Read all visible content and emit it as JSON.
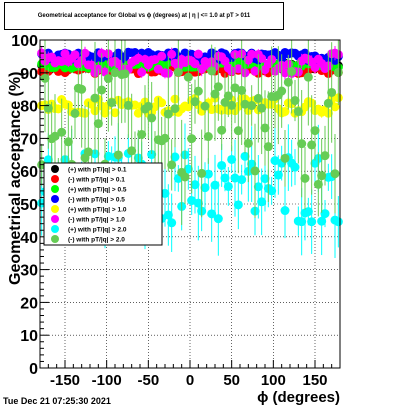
{
  "title": "Geometrical acceptance for Global vs ϕ (degrees) at | η | <= 1.0 at pT > 011",
  "timestamp": "Tue Dec 21 07:25:30 2021",
  "chart_data": {
    "type": "scatter",
    "xlabel": "ϕ (degrees)",
    "ylabel": "Geometrical acceptance (%)",
    "xlim": [
      -180,
      180
    ],
    "ylim": [
      0,
      100
    ],
    "x_ticks": [
      "-150",
      "-100",
      "-50",
      "0",
      "50",
      "100",
      "150"
    ],
    "y_ticks": [
      "0",
      "10",
      "20",
      "30",
      "40",
      "50",
      "60",
      "70",
      "80",
      "90",
      "100"
    ],
    "grid": true,
    "legend_position": "middle-left",
    "series": [
      {
        "name": "(+) with pT/|q| > 0.1",
        "color": "#000000",
        "mean": 92.0,
        "spread": 0.6,
        "err": 0.8
      },
      {
        "name": "(-) with pT/|q| > 0.1",
        "color": "#ff0000",
        "mean": 91.0,
        "spread": 0.8,
        "err": 0.8
      },
      {
        "name": "(+) with pT/|q| > 0.5",
        "color": "#00ff00",
        "mean": 92.5,
        "spread": 0.7,
        "err": 0.8
      },
      {
        "name": "(-) with pT/|q| > 0.5",
        "color": "#0000ff",
        "mean": 95.0,
        "spread": 0.8,
        "err": 0.8
      },
      {
        "name": "(+) with pT/|q| > 1.0",
        "color": "#ffff00",
        "mean": 80.0,
        "spread": 1.5,
        "err": 1.2
      },
      {
        "name": "(-) with pT/|q| > 1.0",
        "color": "#ff00ff",
        "mean": 93.0,
        "spread": 2.0,
        "err": 1.5
      },
      {
        "name": "(+) with pT/|q| > 2.0",
        "color": "#00ffff",
        "mean": 55.0,
        "spread": 7.0,
        "err": 8.0
      },
      {
        "name": "(-) with pT/|q| > 2.0",
        "color": "#66cc55",
        "mean": 73.0,
        "spread": 11.0,
        "err": 12.0
      }
    ]
  }
}
